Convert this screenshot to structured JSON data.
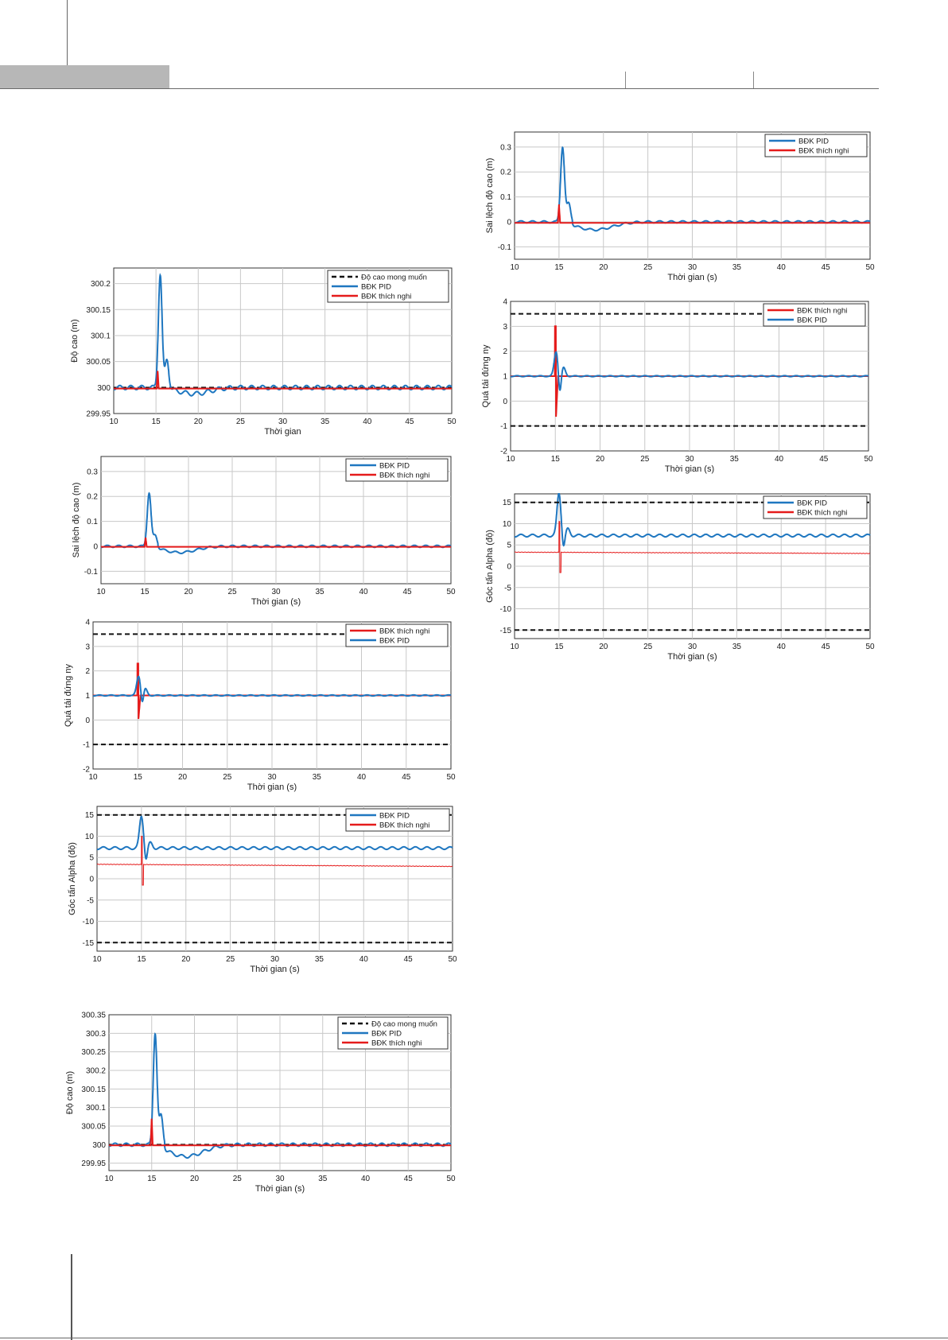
{
  "chart_data": [
    {
      "id": "c1",
      "type": "line",
      "xlabel": "Thời gian",
      "ylabel": "Độ cao (m)",
      "xlim": [
        10,
        50
      ],
      "ylim": [
        299.95,
        300.23
      ],
      "xticks": [
        "10",
        "15",
        "20",
        "25",
        "30",
        "35",
        "40",
        "45",
        "50"
      ],
      "yticks": [
        [
          299.95,
          "299.95"
        ],
        [
          300,
          "300"
        ],
        [
          300.05,
          "300.05"
        ],
        [
          300.1,
          "300.1"
        ],
        [
          300.15,
          "300.15"
        ],
        [
          300.2,
          "300.2"
        ]
      ],
      "grid": true,
      "legend_position": "top-right",
      "series": [
        {
          "name": "Độ cao mong muốn",
          "kind": "ref",
          "value": 300
        },
        {
          "name": "BĐK PID",
          "kind": "pid",
          "base": 300,
          "osc": 0.004,
          "oscPeriod": 1.3,
          "peaks": [
            [
              15.5,
              0.218
            ],
            [
              16.3,
              0.055
            ]
          ],
          "dip": -0.012,
          "dipCenter": 19.5,
          "dipWidth": 1.8,
          "spikeBase": 15.1
        },
        {
          "name": "BĐK thích nghi",
          "kind": "adp",
          "base": 300,
          "spikeT": 15.2,
          "spikeMax": 0.032,
          "spikeMin": 300,
          "offset": -0.002
        }
      ]
    },
    {
      "id": "c2",
      "type": "line",
      "xlabel": "Thời gian (s)",
      "ylabel": "Sai lệch độ cao (m)",
      "xlim": [
        10,
        50
      ],
      "ylim": [
        -0.15,
        0.36
      ],
      "xticks": [
        "10",
        "15",
        "20",
        "25",
        "30",
        "35",
        "40",
        "45",
        "50"
      ],
      "yticks": [
        [
          -0.1,
          "-0.1"
        ],
        [
          0,
          "0"
        ],
        [
          0.1,
          "0.1"
        ],
        [
          0.2,
          "0.2"
        ],
        [
          0.3,
          "0.3"
        ]
      ],
      "grid": true,
      "legend_position": "top-right",
      "series": [
        {
          "name": "BĐK PID",
          "kind": "pid",
          "base": 0,
          "osc": 0.004,
          "oscPeriod": 1.3,
          "peaks": [
            [
              15.5,
              0.215
            ],
            [
              16.2,
              0.045
            ]
          ],
          "dip": -0.025,
          "dipCenter": 19,
          "dipWidth": 1.8,
          "spikeBase": 15.1
        },
        {
          "name": "BĐK thích nghi",
          "kind": "adp",
          "base": 0,
          "spikeT": 15.1,
          "spikeMax": 0.035,
          "spikeMin": 0,
          "offset": -0.002
        }
      ]
    },
    {
      "id": "c3",
      "type": "line",
      "xlabel": "Thời gian (s)",
      "ylabel": "Quá tải đứng ny",
      "xlim": [
        10,
        50
      ],
      "ylim": [
        -2,
        4
      ],
      "xticks": [
        "10",
        "15",
        "20",
        "25",
        "30",
        "35",
        "40",
        "45",
        "50"
      ],
      "yticks": [
        [
          -2,
          "-2"
        ],
        [
          -1,
          "-1"
        ],
        [
          0,
          "0"
        ],
        [
          1,
          "1"
        ],
        [
          2,
          "2"
        ],
        [
          3,
          "3"
        ],
        [
          4,
          "4"
        ]
      ],
      "grid": true,
      "legend_position": "top-right",
      "series": [
        {
          "name": "BĐK thích nghi",
          "kind": "adpload",
          "base": 1,
          "spikeT": 15,
          "spikeMax": 2.3,
          "spikeMin": 0
        },
        {
          "name": "BĐK PID",
          "kind": "pidload",
          "base": 1,
          "osc": 0.02,
          "oscPeriod": 1.3,
          "peaks": [
            [
              15.1,
              0.8
            ],
            [
              15.8,
              0.3
            ]
          ],
          "dip": -0.5,
          "dipCenter": 15.5
        },
        {
          "name": "limit",
          "kind": "ref",
          "value": 3.5,
          "nolegend": true
        },
        {
          "name": "limit",
          "kind": "ref",
          "value": -1,
          "nolegend": true
        }
      ]
    },
    {
      "id": "c4",
      "type": "line",
      "xlabel": "Thời gian (s)",
      "ylabel": "Góc tấn Alpha (độ)",
      "xlim": [
        10,
        50
      ],
      "ylim": [
        -17,
        17
      ],
      "xticks": [
        "10",
        "15",
        "20",
        "25",
        "30",
        "35",
        "40",
        "45",
        "50"
      ],
      "yticks": [
        [
          -15,
          "-15"
        ],
        [
          -10,
          "-10"
        ],
        [
          -5,
          "-5"
        ],
        [
          0,
          "0"
        ],
        [
          5,
          "5"
        ],
        [
          10,
          "10"
        ],
        [
          15,
          "15"
        ]
      ],
      "grid": true,
      "legend_position": "top-right",
      "series": [
        {
          "name": "BĐK PID",
          "kind": "pidalpha",
          "base": 7.2,
          "osc": 0.3,
          "oscPeriod": 1.3,
          "peaks": [
            [
              15.0,
              7.5
            ],
            [
              16.0,
              1.2
            ]
          ],
          "dip": -3,
          "dipCenter": 15.5
        },
        {
          "name": "BĐK thích nghi",
          "kind": "adpalpha",
          "start": 3.4,
          "end": 2.9,
          "spikeT": 15,
          "spikeMax": 10,
          "spikeMin": -1.5
        },
        {
          "name": "limit",
          "kind": "ref",
          "value": 15,
          "nolegend": true
        },
        {
          "name": "limit",
          "kind": "ref",
          "value": -15,
          "nolegend": true
        }
      ]
    },
    {
      "id": "c5",
      "type": "line",
      "xlabel": "Thời gian (s)",
      "ylabel": "Độ cao (m)",
      "xlim": [
        10,
        50
      ],
      "ylim": [
        299.93,
        300.35
      ],
      "xticks": [
        "10",
        "15",
        "20",
        "25",
        "30",
        "35",
        "40",
        "45",
        "50"
      ],
      "yticks": [
        [
          299.95,
          "299.95"
        ],
        [
          300,
          "300"
        ],
        [
          300.05,
          "300.05"
        ],
        [
          300.1,
          "300.1"
        ],
        [
          300.15,
          "300.15"
        ],
        [
          300.2,
          "300.2"
        ],
        [
          300.25,
          "300.25"
        ],
        [
          300.3,
          "300.3"
        ],
        [
          300.35,
          "300.35"
        ]
      ],
      "grid": true,
      "legend_position": "top-right",
      "series": [
        {
          "name": "Độ cao mong muốn",
          "kind": "ref",
          "value": 300
        },
        {
          "name": "BĐK PID",
          "kind": "pid",
          "base": 300,
          "osc": 0.004,
          "oscPeriod": 1.3,
          "peaks": [
            [
              15.4,
              0.302
            ],
            [
              16.1,
              0.08
            ]
          ],
          "dip": -0.032,
          "dipCenter": 19,
          "dipWidth": 2,
          "spikeBase": 15.0
        },
        {
          "name": "BĐK thích nghi",
          "kind": "adp",
          "base": 300,
          "spikeT": 15.0,
          "spikeMax": 0.07,
          "spikeMin": 300,
          "offset": -0.002
        }
      ]
    },
    {
      "id": "c6",
      "type": "line",
      "xlabel": "Thời gian (s)",
      "ylabel": "Sai lệch độ cao (m)",
      "xlim": [
        10,
        50
      ],
      "ylim": [
        -0.15,
        0.36
      ],
      "xticks": [
        "10",
        "15",
        "20",
        "25",
        "30",
        "35",
        "40",
        "45",
        "50"
      ],
      "yticks": [
        [
          -0.1,
          "-0.1"
        ],
        [
          0,
          "0"
        ],
        [
          0.1,
          "0.1"
        ],
        [
          0.2,
          "0.2"
        ],
        [
          0.3,
          "0.3"
        ]
      ],
      "grid": true,
      "legend_position": "top-right",
      "series": [
        {
          "name": "BĐK PID",
          "kind": "pid",
          "base": 0,
          "osc": 0.004,
          "oscPeriod": 1.3,
          "peaks": [
            [
              15.4,
              0.302
            ],
            [
              16.1,
              0.075
            ]
          ],
          "dip": -0.032,
          "dipCenter": 19,
          "dipWidth": 2,
          "spikeBase": 15.0
        },
        {
          "name": "BĐK thích nghi",
          "kind": "adp",
          "base": 0,
          "spikeT": 15.0,
          "spikeMax": 0.07,
          "spikeMin": 0,
          "offset": -0.004
        }
      ]
    },
    {
      "id": "c7",
      "type": "line",
      "xlabel": "Thời gian (s)",
      "ylabel": "Quá tải đứng ny",
      "xlim": [
        10,
        50
      ],
      "ylim": [
        -2,
        4
      ],
      "xticks": [
        "10",
        "15",
        "20",
        "25",
        "30",
        "35",
        "40",
        "45",
        "50"
      ],
      "yticks": [
        [
          -2,
          "-2"
        ],
        [
          -1,
          "-1"
        ],
        [
          0,
          "0"
        ],
        [
          1,
          "1"
        ],
        [
          2,
          "2"
        ],
        [
          3,
          "3"
        ],
        [
          4,
          "4"
        ]
      ],
      "grid": true,
      "legend_position": "top-right",
      "series": [
        {
          "name": "BĐK thích nghi",
          "kind": "adpload",
          "base": 1,
          "spikeT": 15,
          "spikeMax": 3,
          "spikeMin": -0.7
        },
        {
          "name": "BĐK PID",
          "kind": "pidload",
          "base": 1,
          "osc": 0.02,
          "oscPeriod": 1.3,
          "peaks": [
            [
              15.1,
              1.0
            ],
            [
              15.9,
              0.35
            ]
          ],
          "dip": -0.8,
          "dipCenter": 15.5
        },
        {
          "name": "limit",
          "kind": "ref",
          "value": 3.5,
          "nolegend": true
        },
        {
          "name": "limit",
          "kind": "ref",
          "value": -1,
          "nolegend": true
        }
      ]
    },
    {
      "id": "c8",
      "type": "line",
      "xlabel": "Thời gian (s)",
      "ylabel": "Góc tấn Alpha (độ)",
      "xlim": [
        10,
        50
      ],
      "ylim": [
        -17,
        17
      ],
      "xticks": [
        "10",
        "15",
        "20",
        "25",
        "30",
        "35",
        "40",
        "45",
        "50"
      ],
      "yticks": [
        [
          -15,
          "-15"
        ],
        [
          -10,
          "-10"
        ],
        [
          -5,
          "-5"
        ],
        [
          0,
          "0"
        ],
        [
          5,
          "5"
        ],
        [
          10,
          "10"
        ],
        [
          15,
          "15"
        ]
      ],
      "grid": true,
      "legend_position": "top-right",
      "series": [
        {
          "name": "BĐK PID",
          "kind": "pidalpha",
          "base": 7.2,
          "osc": 0.3,
          "oscPeriod": 1.3,
          "peaks": [
            [
              15.0,
              10
            ],
            [
              16.0,
              1.5
            ]
          ],
          "dip": -3,
          "dipCenter": 15.5
        },
        {
          "name": "BĐK thích nghi",
          "kind": "adpalpha",
          "start": 3.3,
          "end": 3.0,
          "spikeT": 15,
          "spikeMax": 10.5,
          "spikeMin": -1.5
        },
        {
          "name": "limit",
          "kind": "ref",
          "value": 15,
          "nolegend": true
        },
        {
          "name": "limit",
          "kind": "ref",
          "value": -15,
          "nolegend": true
        }
      ]
    }
  ],
  "colors": {
    "pid": "#1f77c0",
    "adaptive": "#e51b1b",
    "ref": "#111111",
    "grid": "#c8c8c8"
  }
}
